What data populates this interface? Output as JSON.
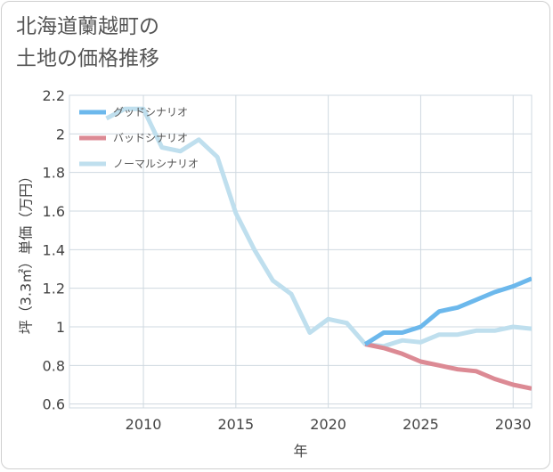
{
  "title": {
    "line1": "北海道蘭越町の",
    "line2": "土地の価格推移"
  },
  "chart_data": {
    "type": "line",
    "xlabel": "年",
    "ylabel": "坪（3.3㎡）単価（万円）",
    "xlim": [
      2006,
      2031
    ],
    "ylim": [
      0.58,
      2.2
    ],
    "x_ticks": [
      2010,
      2015,
      2020,
      2025,
      2030
    ],
    "x_tick_labels": [
      "2010",
      "2015",
      "2020",
      "2025",
      "2030"
    ],
    "y_ticks": [
      0.6,
      0.8,
      1.0,
      1.2,
      1.4,
      1.6,
      1.8,
      2.0,
      2.2
    ],
    "y_tick_labels": [
      "0.6",
      "0.8",
      "1",
      "1.2",
      "1.4",
      "1.6",
      "1.8",
      "2",
      "2.2"
    ],
    "grid": true,
    "legend_position": "top-left",
    "series": [
      {
        "name": "グッドシナリオ",
        "color": "#6cb8ec",
        "x": [
          2022,
          2023,
          2024,
          2025,
          2026,
          2027,
          2028,
          2029,
          2030,
          2031
        ],
        "values": [
          0.91,
          0.97,
          0.97,
          1.0,
          1.08,
          1.1,
          1.14,
          1.18,
          1.21,
          1.25
        ]
      },
      {
        "name": "バッドシナリオ",
        "color": "#dc8a94",
        "x": [
          2022,
          2023,
          2024,
          2025,
          2026,
          2027,
          2028,
          2029,
          2030,
          2031
        ],
        "values": [
          0.91,
          0.89,
          0.86,
          0.82,
          0.8,
          0.78,
          0.77,
          0.73,
          0.7,
          0.68
        ]
      },
      {
        "name": "ノーマルシナリオ",
        "color": "#bfdfee",
        "x": [
          2008,
          2009,
          2010,
          2011,
          2012,
          2013,
          2014,
          2015,
          2016,
          2017,
          2018,
          2019,
          2020,
          2021,
          2022,
          2023,
          2024,
          2025,
          2026,
          2027,
          2028,
          2029,
          2030,
          2031
        ],
        "values": [
          2.08,
          2.13,
          2.13,
          1.93,
          1.91,
          1.97,
          1.88,
          1.59,
          1.4,
          1.24,
          1.17,
          0.97,
          1.04,
          1.02,
          0.91,
          0.9,
          0.93,
          0.92,
          0.96,
          0.96,
          0.98,
          0.98,
          1.0,
          0.99
        ]
      }
    ]
  }
}
